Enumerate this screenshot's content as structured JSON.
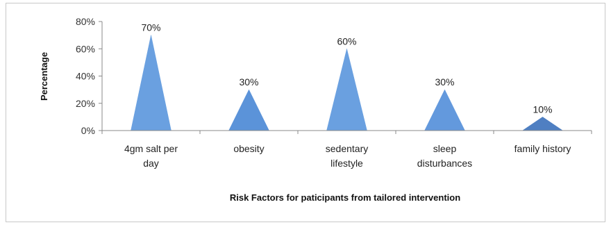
{
  "chart_data": {
    "type": "area",
    "title": "",
    "xlabel": "Risk Factors for paticipants  from tailored intervention",
    "ylabel": "Percentage",
    "ylim": [
      0,
      80
    ],
    "y_ticks": [
      "0%",
      "20%",
      "40%",
      "60%",
      "80%"
    ],
    "grid": false,
    "legend": "none",
    "categories": [
      [
        "4gm salt per",
        "day"
      ],
      [
        "obesity"
      ],
      [
        "sedentary",
        "lifestyle"
      ],
      [
        "sleep",
        "disturbances"
      ],
      [
        "family history"
      ]
    ],
    "values": [
      70,
      30,
      60,
      30,
      10
    ],
    "data_labels": [
      "70%",
      "30%",
      "60%",
      "30%",
      "10%"
    ],
    "colors": [
      "#6aa0e0",
      "#5b93d9",
      "#6aa0e0",
      "#6399dd",
      "#4f7fc2"
    ]
  }
}
